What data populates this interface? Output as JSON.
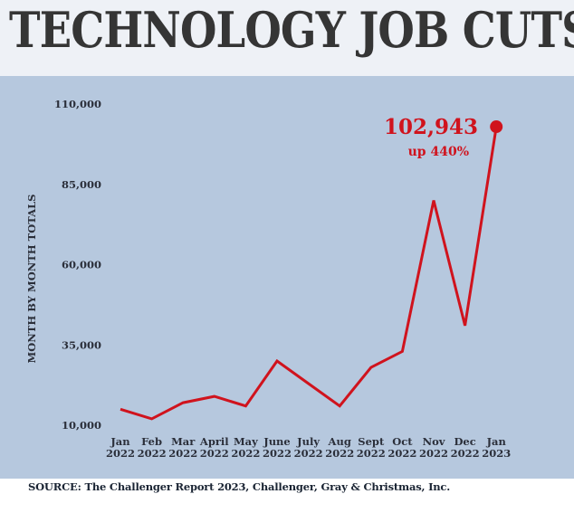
{
  "chart_data": {
    "type": "line",
    "title": "TECHNOLOGY JOB CUTS",
    "ylabel": "MONTH BY MONTH TOTALS",
    "xlabel": "",
    "categories": [
      [
        "Jan",
        "2022"
      ],
      [
        "Feb",
        "2022"
      ],
      [
        "Mar",
        "2022"
      ],
      [
        "April",
        "2022"
      ],
      [
        "May",
        "2022"
      ],
      [
        "June",
        "2022"
      ],
      [
        "July",
        "2022"
      ],
      [
        "Aug",
        "2022"
      ],
      [
        "Sept",
        "2022"
      ],
      [
        "Oct",
        "2022"
      ],
      [
        "Nov",
        "2022"
      ],
      [
        "Dec",
        "2022"
      ],
      [
        "Jan",
        "2023"
      ]
    ],
    "series": [
      {
        "values": [
          15000,
          12000,
          17000,
          19000,
          16000,
          30000,
          23000,
          16000,
          28000,
          33000,
          80000,
          41000,
          102943
        ],
        "color": "#d0131d"
      }
    ],
    "yticks": [
      10000,
      35000,
      60000,
      85000,
      110000
    ],
    "ytick_labels": [
      "10,000",
      "35,000",
      "60,000",
      "85,000",
      "110,000"
    ],
    "ylim": [
      10000,
      110000
    ],
    "grid": false,
    "annotation": {
      "value_label": "102,943",
      "sub_label": "up 440%",
      "point_index": 12
    },
    "source": "SOURCE: The Challenger Report 2023, Challenger, Gray & Christmas, Inc."
  }
}
